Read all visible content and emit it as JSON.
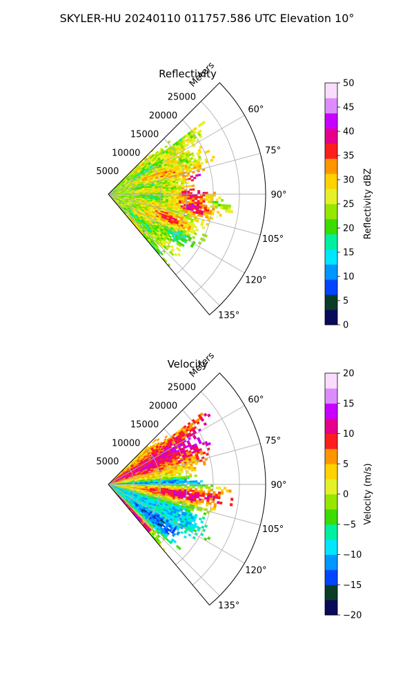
{
  "suptitle": "SKYLER-HU  20240110  011757.586 UTC Elevation 10°",
  "chart_data": [
    {
      "type": "heatmap",
      "subtype": "polar-ppi",
      "title": "Reflectivity",
      "radial_label": "Meters",
      "radial_ticks": [
        "5000",
        "10000",
        "15000",
        "20000",
        "25000"
      ],
      "radial_tick_values": [
        5000,
        10000,
        15000,
        20000,
        25000
      ],
      "rlim": [
        0,
        30000
      ],
      "azimuth_range": [
        45,
        140
      ],
      "azimuth_ticks": [
        "60°",
        "75°",
        "90°",
        "105°",
        "120°",
        "135°"
      ],
      "azimuth_tick_values": [
        60,
        75,
        90,
        105,
        120,
        135
      ],
      "grid": true,
      "colorbar": {
        "label": "Reflectivity dBZ",
        "range": [
          0,
          50
        ],
        "ticks": [
          "0",
          "5",
          "10",
          "15",
          "20",
          "25",
          "30",
          "35",
          "40",
          "45",
          "50"
        ],
        "tick_values": [
          0,
          5,
          10,
          15,
          20,
          25,
          30,
          35,
          40,
          45,
          50
        ]
      },
      "field_description": "dominant values 20-30 dBZ with cores of 35-45 dBZ near 85-105° at 15000-20000 m",
      "data_extent_m": 24000
    },
    {
      "type": "heatmap",
      "subtype": "polar-ppi",
      "title": "Velocity",
      "radial_label": "Meters",
      "radial_ticks": [
        "5000",
        "10000",
        "15000",
        "20000",
        "25000"
      ],
      "radial_tick_values": [
        5000,
        10000,
        15000,
        20000,
        25000
      ],
      "rlim": [
        0,
        30000
      ],
      "azimuth_range": [
        45,
        140
      ],
      "azimuth_ticks": [
        "60°",
        "75°",
        "90°",
        "105°",
        "120°",
        "135°"
      ],
      "azimuth_tick_values": [
        60,
        75,
        90,
        105,
        120,
        135
      ],
      "grid": true,
      "colorbar": {
        "label": "Velocity (m/s)",
        "range": [
          -20,
          20
        ],
        "ticks": [
          "−20",
          "−15",
          "−10",
          "−5",
          "0",
          "5",
          "10",
          "15",
          "20"
        ],
        "tick_values": [
          -20,
          -15,
          -10,
          -5,
          0,
          5,
          10,
          15,
          20
        ]
      },
      "field_description": "positive 5-15 m/s north of 75° and near 95-105°, negative -5 to -15 m/s near 88° and 110-130°",
      "data_extent_m": 24000
    }
  ],
  "colors": {
    "reflectivity_cmap": [
      "#0a0a5a",
      "#0a3c28",
      "#0046ff",
      "#0096ff",
      "#00e6ff",
      "#00f0a0",
      "#3cdc00",
      "#96e600",
      "#e6f028",
      "#ffd200",
      "#ff9600",
      "#ff1e1e",
      "#e6008c",
      "#c800ff",
      "#dc8cff",
      "#fadcff"
    ],
    "velocity_cmap": [
      "#0a0a5a",
      "#0a3c28",
      "#0046ff",
      "#0096ff",
      "#00e6ff",
      "#00f0a0",
      "#3cdc00",
      "#96e600",
      "#e6f028",
      "#ffd200",
      "#ff9600",
      "#ff1e1e",
      "#e6008c",
      "#c800ff",
      "#dc8cff",
      "#fadcff"
    ],
    "grid": "#b0b0b0",
    "frame": "#000000"
  }
}
